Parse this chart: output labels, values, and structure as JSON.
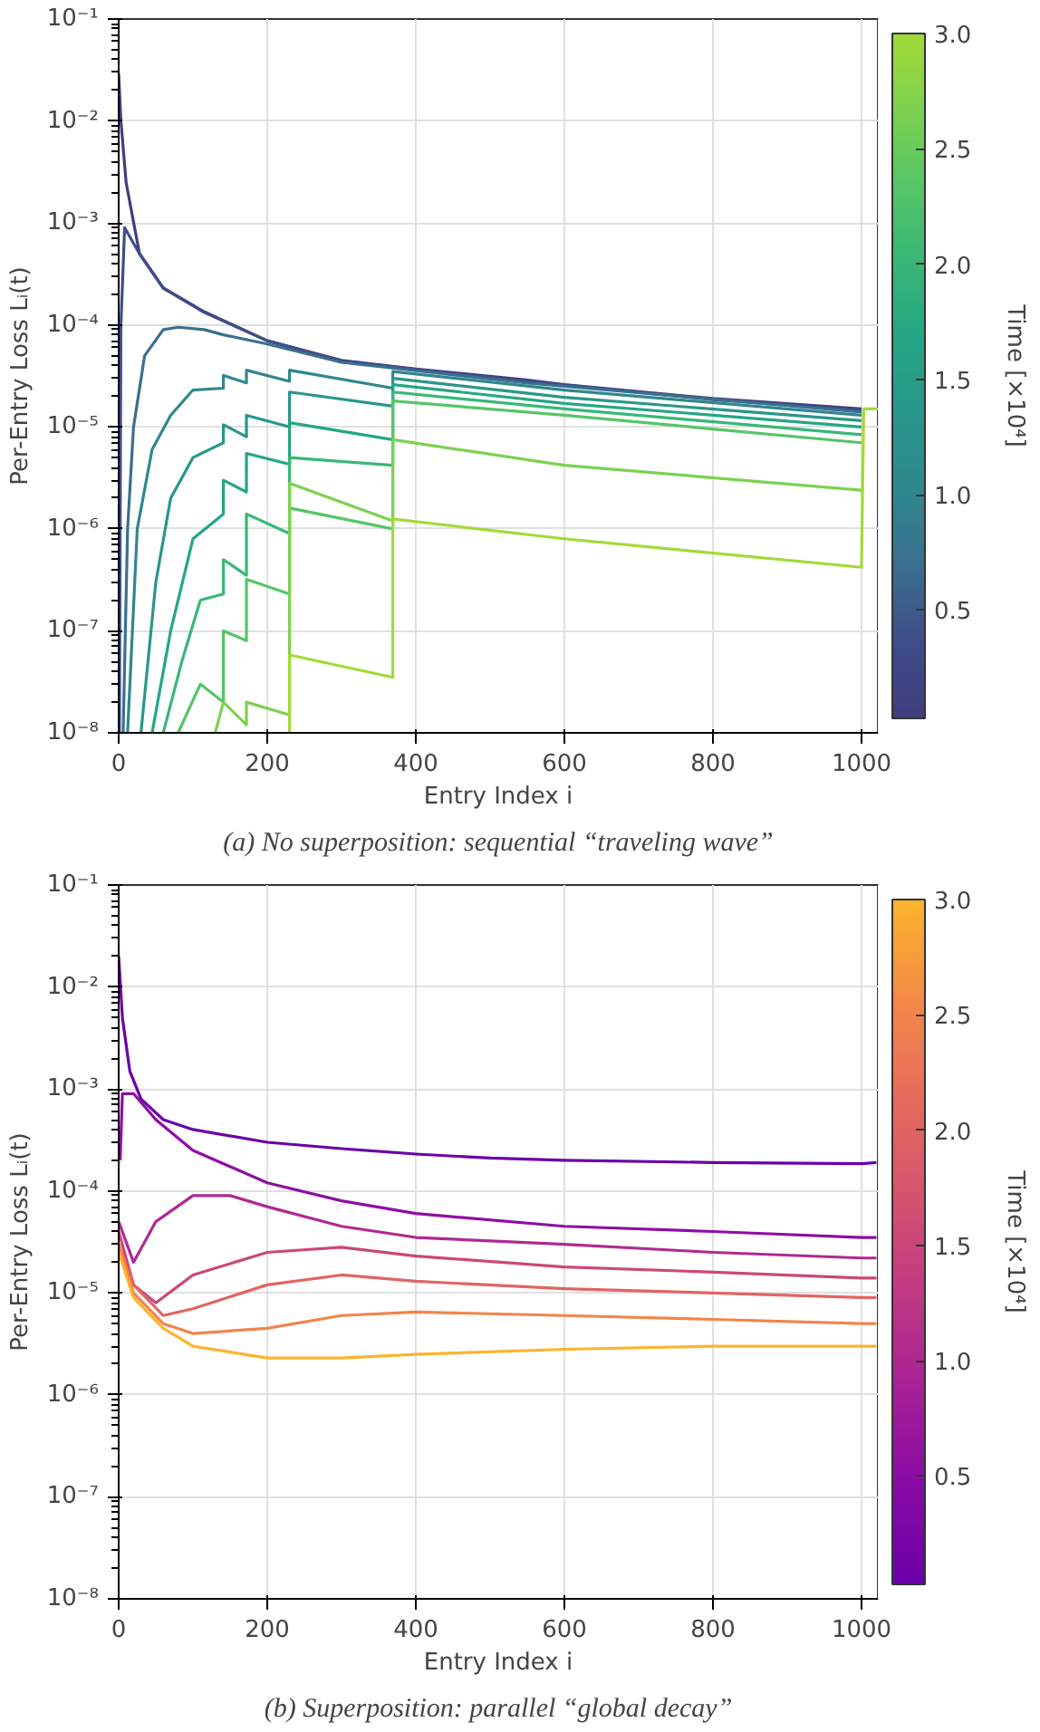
{
  "chart_data": [
    {
      "type": "line",
      "title": "(a) No superposition: sequential “traveling wave”",
      "xlabel": "Entry Index i",
      "ylabel": "Per-Entry Loss Lᵢ(t)",
      "clabel": "Time [×10⁴]",
      "log": "y",
      "grid": true,
      "xlim": [
        0,
        1022
      ],
      "xticks": [
        0,
        200,
        400,
        600,
        800,
        1000
      ],
      "ylim": [
        1e-08,
        0.1
      ],
      "yticks": [
        {
          "value": 1e-08,
          "label": "10⁻⁸"
        },
        {
          "value": 1e-07,
          "label": "10⁻⁷"
        },
        {
          "value": 1e-06,
          "label": "10⁻⁶"
        },
        {
          "value": 1e-05,
          "label": "10⁻⁵"
        },
        {
          "value": 0.0001,
          "label": "10⁻⁴"
        },
        {
          "value": 0.001,
          "label": "10⁻³"
        },
        {
          "value": 0.01,
          "label": "10⁻²"
        },
        {
          "value": 0.1,
          "label": "10⁻¹"
        }
      ],
      "clim": [
        0.03,
        3.0
      ],
      "cticks": [
        {
          "value": 0.5,
          "label": "0.5"
        },
        {
          "value": 1.0,
          "label": "1.0"
        },
        {
          "value": 1.5,
          "label": "1.5"
        },
        {
          "value": 2.0,
          "label": "2.0"
        },
        {
          "value": 2.5,
          "label": "2.5"
        },
        {
          "value": 3.0,
          "label": "3.0"
        }
      ],
      "series": [
        {
          "color": "#413d7f",
          "x": [
            0,
            3,
            10,
            28,
            60,
            115,
            200,
            300,
            400,
            548,
            600,
            800,
            1000
          ],
          "values": [
            0.029,
            0.01,
            0.0025,
            0.0005,
            0.00023,
            0.000135,
            7e-05,
            4.5e-05,
            3.7e-05,
            2.9e-05,
            2.6e-05,
            1.9e-05,
            1.5e-05
          ]
        },
        {
          "color": "#3f4d8a",
          "x": [
            1,
            3,
            8,
            28,
            60,
            115,
            200,
            300,
            548,
            800,
            1000
          ],
          "values": [
            1e-08,
            0.0001,
            0.0009,
            0.0005,
            0.00023,
            0.000133,
            7e-05,
            4.4e-05,
            2.8e-05,
            1.85e-05,
            1.45e-05
          ]
        },
        {
          "color": "#3a6f8f",
          "x": [
            6,
            12,
            20,
            35,
            60,
            80,
            115,
            141,
            200,
            300,
            548,
            1000
          ],
          "values": [
            1e-08,
            1e-06,
            1e-05,
            5e-05,
            9e-05,
            9.5e-05,
            9e-05,
            8e-05,
            6.5e-05,
            4.3e-05,
            2.7e-05,
            1.4e-05
          ]
        },
        {
          "color": "#2f878d",
          "x": [
            12,
            25,
            45,
            70,
            100,
            141,
            141,
            172,
            172,
            230,
            230,
            369,
            369,
            600,
            1000
          ],
          "values": [
            1e-08,
            1e-06,
            6e-06,
            1.3e-05,
            2.3e-05,
            2.4e-05,
            3.2e-05,
            2.7e-05,
            3.6e-05,
            2.8e-05,
            3.6e-05,
            2.4e-05,
            3.5e-05,
            2.3e-05,
            1.3e-05
          ]
        },
        {
          "color": "#28978a",
          "x": [
            30,
            50,
            70,
            100,
            141,
            141,
            172,
            172,
            230,
            230,
            369,
            369,
            600,
            1000
          ],
          "values": [
            1e-08,
            3e-07,
            2e-06,
            5e-06,
            7e-06,
            1.05e-05,
            8e-06,
            1.3e-05,
            1e-05,
            2.2e-05,
            1.6e-05,
            3e-05,
            1.95e-05,
            1.15e-05
          ]
        },
        {
          "color": "#24a684",
          "x": [
            45,
            70,
            100,
            141,
            141,
            172,
            172,
            230,
            230,
            369,
            369,
            600,
            1000
          ],
          "values": [
            1e-08,
            1e-07,
            8e-07,
            1.4e-06,
            3e-06,
            2.3e-06,
            5.5e-06,
            4.3e-06,
            1.1e-05,
            7.5e-06,
            2.6e-05,
            1.7e-05,
            1e-05
          ]
        },
        {
          "color": "#38b777",
          "x": [
            60,
            85,
            110,
            141,
            141,
            172,
            172,
            230,
            230,
            369,
            369,
            600,
            1000
          ],
          "values": [
            1e-08,
            5e-08,
            2e-07,
            2.3e-07,
            5e-07,
            3.5e-07,
            1.4e-06,
            9e-07,
            5e-06,
            4.2e-06,
            2.2e-05,
            1.5e-05,
            8.4e-06
          ]
        },
        {
          "color": "#55c567",
          "x": [
            80,
            110,
            141,
            141,
            172,
            172,
            230,
            230,
            369,
            369,
            600,
            1000
          ],
          "values": [
            1e-08,
            3e-08,
            2e-08,
            1e-07,
            8e-08,
            3.2e-07,
            2.3e-07,
            1.6e-06,
            1e-06,
            1.8e-05,
            1.3e-05,
            7e-06
          ]
        },
        {
          "color": "#7dd150",
          "x": [
            130,
            141,
            172,
            172,
            230,
            230,
            369,
            369,
            600,
            1000
          ],
          "values": [
            1e-08,
            2e-08,
            1.2e-08,
            2e-08,
            1.5e-08,
            2.8e-06,
            1.2e-06,
            7.5e-06,
            4.2e-06,
            2.4e-06
          ]
        },
        {
          "color": "#a2da37",
          "x": [
            230,
            230,
            369,
            369,
            600,
            1000,
            1003,
            1022
          ],
          "values": [
            1e-08,
            5.8e-08,
            3.5e-08,
            1.25e-06,
            8e-07,
            4.2e-07,
            1.5e-05,
            1.5e-05
          ]
        }
      ]
    },
    {
      "type": "line",
      "title": "(b) Superposition: parallel “global decay”",
      "xlabel": "Entry Index i",
      "ylabel": "Per-Entry Loss Lᵢ(t)",
      "clabel": "Time [×10⁴]",
      "log": "y",
      "grid": true,
      "xlim": [
        0,
        1022
      ],
      "xticks": [
        0,
        200,
        400,
        600,
        800,
        1000
      ],
      "ylim": [
        1e-08,
        0.1
      ],
      "yticks": [
        {
          "value": 1e-08,
          "label": "10⁻⁸"
        },
        {
          "value": 1e-07,
          "label": "10⁻⁷"
        },
        {
          "value": 1e-06,
          "label": "10⁻⁶"
        },
        {
          "value": 1e-05,
          "label": "10⁻⁵"
        },
        {
          "value": 0.0001,
          "label": "10⁻⁴"
        },
        {
          "value": 0.001,
          "label": "10⁻³"
        },
        {
          "value": 0.01,
          "label": "10⁻²"
        },
        {
          "value": 0.1,
          "label": "10⁻¹"
        }
      ],
      "clim": [
        0.03,
        3.0
      ],
      "cticks": [
        {
          "value": 0.5,
          "label": "0.5"
        },
        {
          "value": 1.0,
          "label": "1.0"
        },
        {
          "value": 1.5,
          "label": "1.5"
        },
        {
          "value": 2.0,
          "label": "2.0"
        },
        {
          "value": 2.5,
          "label": "2.5"
        },
        {
          "value": 3.0,
          "label": "3.0"
        }
      ],
      "series": [
        {
          "color": "#6a00a8",
          "x": [
            0,
            5,
            15,
            30,
            60,
            100,
            200,
            300,
            400,
            500,
            600,
            800,
            1000,
            1020
          ],
          "values": [
            0.02,
            0.005,
            0.0015,
            0.0008,
            0.0005,
            0.0004,
            0.0003,
            0.00026,
            0.00023,
            0.00021,
            0.0002,
            0.00019,
            0.000185,
            0.00019
          ]
        },
        {
          "color": "#8f0da4",
          "x": [
            2,
            5,
            20,
            50,
            100,
            200,
            300,
            400,
            600,
            800,
            1000,
            1020
          ],
          "values": [
            0.0002,
            0.0009,
            0.0009,
            0.0005,
            0.00025,
            0.00012,
            8e-05,
            6e-05,
            4.5e-05,
            4e-05,
            3.5e-05,
            3.5e-05
          ]
        },
        {
          "color": "#b02991",
          "x": [
            0,
            20,
            50,
            100,
            150,
            200,
            300,
            400,
            600,
            800,
            1000,
            1020
          ],
          "values": [
            5e-05,
            2e-05,
            5e-05,
            9e-05,
            9e-05,
            7e-05,
            4.5e-05,
            3.5e-05,
            3e-05,
            2.5e-05,
            2.2e-05,
            2.2e-05
          ]
        },
        {
          "color": "#cc4778",
          "x": [
            0,
            20,
            50,
            100,
            200,
            300,
            400,
            600,
            800,
            1000,
            1020
          ],
          "values": [
            4e-05,
            1.2e-05,
            8e-06,
            1.5e-05,
            2.5e-05,
            2.8e-05,
            2.3e-05,
            1.8e-05,
            1.6e-05,
            1.4e-05,
            1.4e-05
          ]
        },
        {
          "color": "#e16462",
          "x": [
            0,
            20,
            60,
            100,
            200,
            300,
            400,
            600,
            800,
            1000,
            1020
          ],
          "values": [
            3e-05,
            1.2e-05,
            6e-06,
            7e-06,
            1.2e-05,
            1.5e-05,
            1.3e-05,
            1.1e-05,
            1e-05,
            9e-06,
            9e-06
          ]
        },
        {
          "color": "#f2844b",
          "x": [
            0,
            20,
            60,
            100,
            200,
            300,
            400,
            600,
            800,
            1000,
            1020
          ],
          "values": [
            3e-05,
            1e-05,
            5e-06,
            4e-06,
            4.5e-06,
            6e-06,
            6.5e-06,
            6e-06,
            5.5e-06,
            5e-06,
            5e-06
          ]
        },
        {
          "color": "#fcb42c",
          "x": [
            0,
            20,
            60,
            100,
            200,
            300,
            400,
            600,
            800,
            1000,
            1020
          ],
          "values": [
            2.5e-05,
            9e-06,
            4.5e-06,
            3e-06,
            2.3e-06,
            2.3e-06,
            2.5e-06,
            2.8e-06,
            3e-06,
            3e-06,
            3e-06
          ]
        }
      ]
    }
  ]
}
